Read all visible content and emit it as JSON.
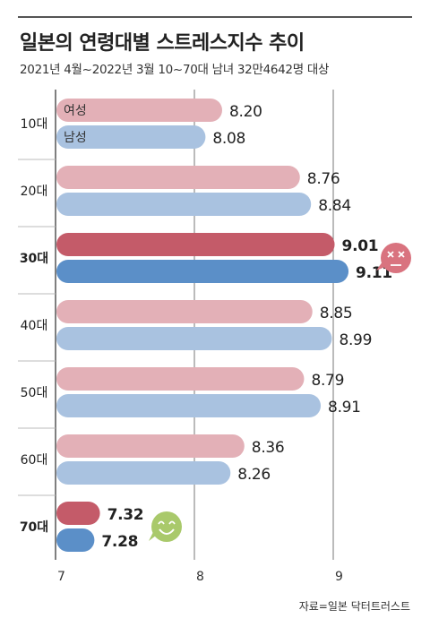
{
  "title": "일본의 연령대별 스트레스지수 추이",
  "subtitle": "2021년 4월~2022년 3월 10~70대 남녀 32만4642명 대상",
  "source": "자료=일본 닥터트러스트",
  "chart_data": {
    "type": "bar",
    "orientation": "horizontal",
    "categories": [
      "10대",
      "20대",
      "30대",
      "40대",
      "50대",
      "60대",
      "70대"
    ],
    "highlight_categories": [
      "30대",
      "70대"
    ],
    "series": [
      {
        "name": "여성",
        "values": [
          8.2,
          8.76,
          9.01,
          8.85,
          8.79,
          8.36,
          7.32
        ],
        "color": "#e3b0b7",
        "highlight_color": "#c45b69"
      },
      {
        "name": "남성",
        "values": [
          8.08,
          8.84,
          9.11,
          8.99,
          8.91,
          8.26,
          7.28
        ],
        "color": "#a9c2e0",
        "highlight_color": "#5b8fc8"
      }
    ],
    "value_labels": {
      "여성": [
        "8.20",
        "8.76",
        "9.01",
        "8.85",
        "8.79",
        "8.36",
        "7.32"
      ],
      "남성": [
        "8.08",
        "8.84",
        "9.11",
        "8.99",
        "8.91",
        "8.26",
        "7.28"
      ]
    },
    "legend_placement": "inside-first-bars",
    "x_ticks": [
      "7",
      "8",
      "9"
    ],
    "xlim": [
      7,
      9.15
    ],
    "grid": true,
    "icons": [
      {
        "category": "30대",
        "name": "stressed-face-icon",
        "color": "#d9737f"
      },
      {
        "category": "70대",
        "name": "smiling-face-icon",
        "color": "#a9c96b"
      }
    ]
  }
}
